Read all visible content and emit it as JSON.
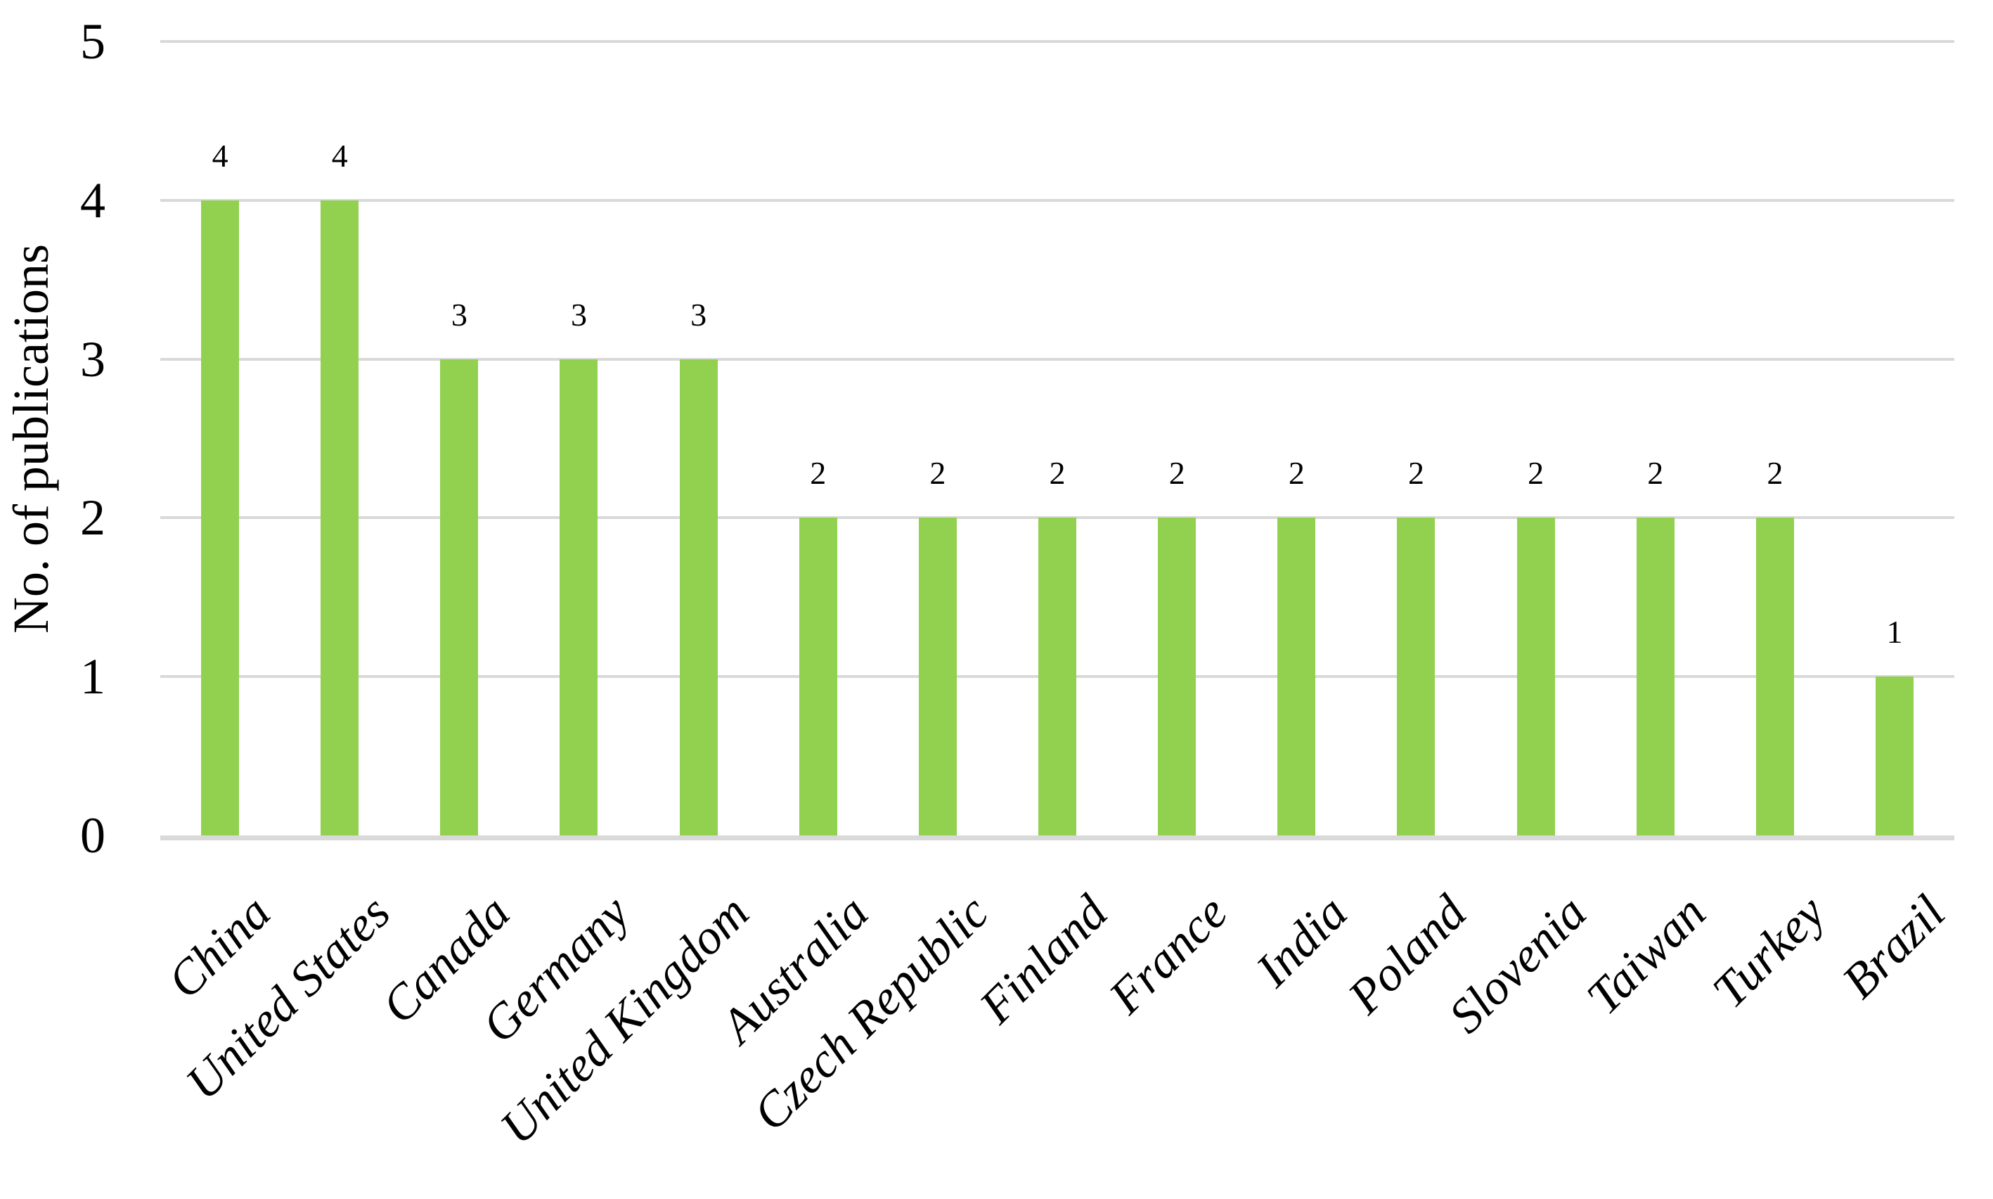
{
  "chart_data": {
    "type": "bar",
    "title": "",
    "ylabel": "No. of publications",
    "xlabel": "",
    "categories": [
      "China",
      "United States",
      "Canada",
      "Germany",
      "United Kingdom",
      "Australia",
      "Czech Republic",
      "Finland",
      "France",
      "India",
      "Poland",
      "Slovenia",
      "Taiwan",
      "Turkey",
      "Brazil"
    ],
    "values": [
      4,
      4,
      3,
      3,
      3,
      2,
      2,
      2,
      2,
      2,
      2,
      2,
      2,
      2,
      1
    ],
    "data_labels": [
      "4",
      "4",
      "3",
      "3",
      "3",
      "2",
      "2",
      "2",
      "2",
      "2",
      "2",
      "2",
      "2",
      "2",
      "1"
    ],
    "ylim": [
      0,
      5
    ],
    "yticks": [
      0,
      1,
      2,
      3,
      4,
      5
    ],
    "grid": true,
    "legend_position": "none",
    "colors": {
      "bar": "#92d050",
      "gridline": "#d9d9d9",
      "axis_line": "#d9d9d9",
      "text": "#000000",
      "background": "#ffffff"
    }
  }
}
